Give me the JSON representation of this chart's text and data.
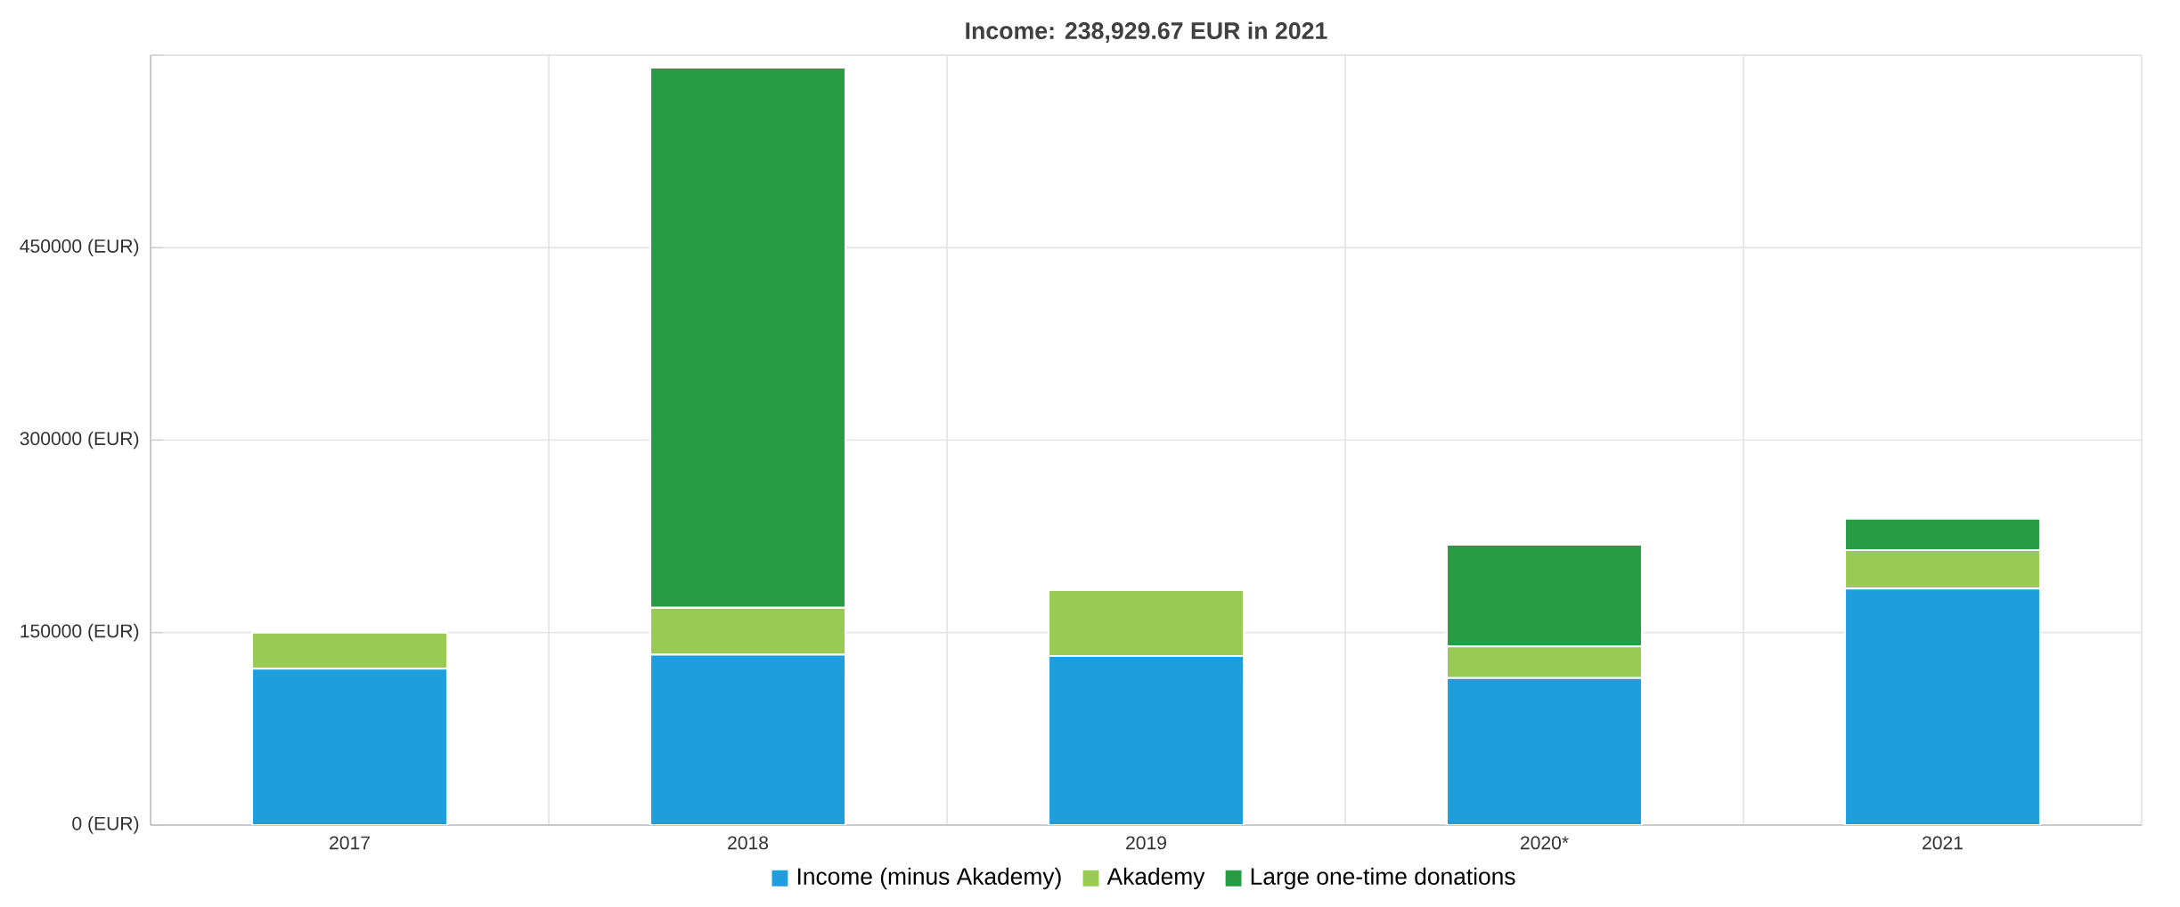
{
  "chart_data": {
    "type": "bar",
    "title": "Income: 238,929.67 EUR in 2021",
    "categories": [
      "2017",
      "2018",
      "2019",
      "2020*",
      "2021"
    ],
    "series": [
      {
        "name": "Income (minus Akademy)",
        "color": "#1f9ede",
        "values": [
          122000,
          132800,
          131800,
          114600,
          184300
        ]
      },
      {
        "name": "Akademy",
        "color": "#99ca53",
        "values": [
          28000,
          36500,
          51400,
          24700,
          30000
        ]
      },
      {
        "name": "Large one-time donations",
        "color": "#289c45",
        "values": [
          0,
          421100,
          0,
          79300,
          24600
        ]
      }
    ],
    "stacked": true,
    "ylim": [
      0,
      600000
    ],
    "yticks": [
      {
        "value": 0,
        "label": "0 (EUR)"
      },
      {
        "value": 150000,
        "label": "150000 (EUR)"
      },
      {
        "value": 300000,
        "label": "300000 (EUR)"
      },
      {
        "value": 450000,
        "label": "450000 (EUR)"
      },
      {
        "value": 600000,
        "label": null
      }
    ],
    "grid": true,
    "legend": "bottom"
  }
}
